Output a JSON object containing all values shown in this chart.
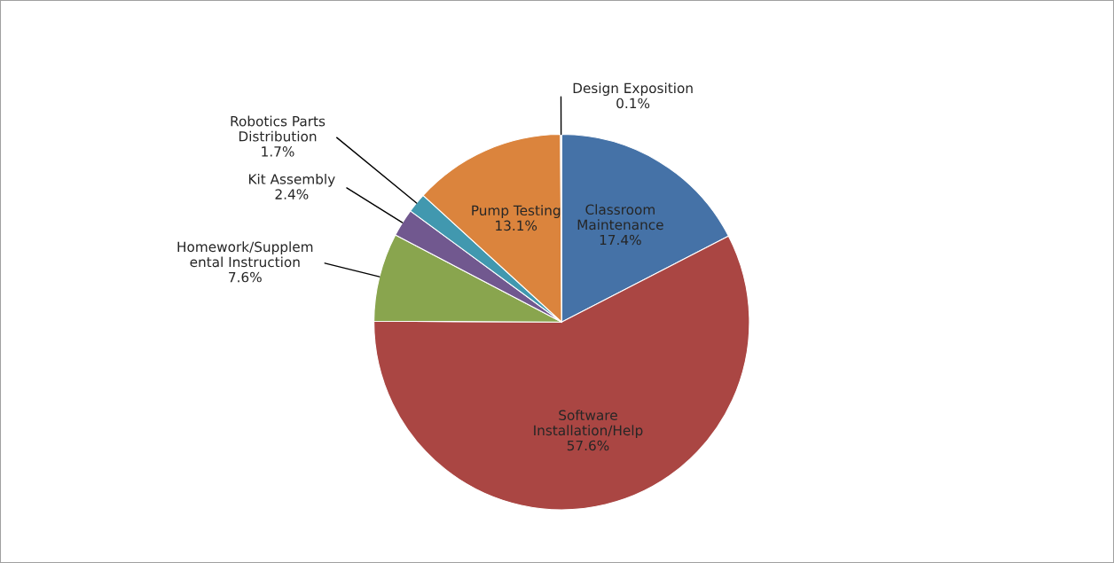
{
  "chart_data": {
    "type": "pie",
    "categories": [
      "Classroom Maintenance",
      "Software Installation/Help",
      "Homework/Supplemental Instruction",
      "Kit Assembly",
      "Robotics Parts Distribution",
      "Pump Testing",
      "Design Exposition"
    ],
    "values": [
      17.4,
      57.6,
      7.6,
      2.4,
      1.7,
      13.1,
      0.1
    ],
    "colors": [
      "#4572a7",
      "#aa4643",
      "#89a54e",
      "#71588f",
      "#4198af",
      "#db843d",
      "#93a9cf"
    ],
    "value_labels": [
      "17.4%",
      "57.6%",
      "7.6%",
      "2.4%",
      "1.7%",
      "13.1%",
      "0.1%"
    ],
    "legend": false
  }
}
